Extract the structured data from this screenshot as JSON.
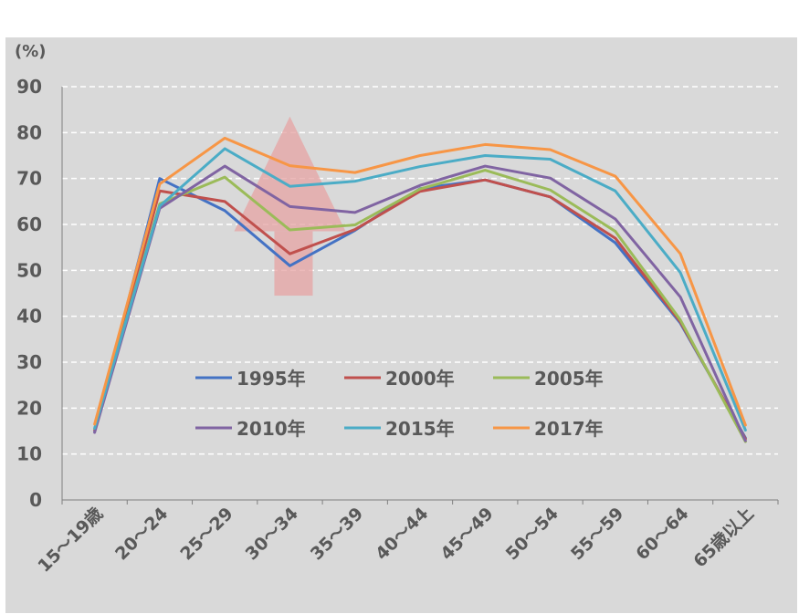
{
  "chart_data": {
    "type": "line",
    "title": "",
    "xlabel": "",
    "ylabel": "(%)",
    "ylim": [
      0,
      90
    ],
    "yticks": [
      0,
      10,
      20,
      30,
      40,
      50,
      60,
      70,
      80,
      90
    ],
    "grid": true,
    "legend_position": "center-bottom",
    "categories": [
      "15～19歳",
      "20～24",
      "25～29",
      "30～34",
      "35～39",
      "40～44",
      "45～49",
      "50～54",
      "55～59",
      "60～64",
      "65歳以上"
    ],
    "series": [
      {
        "name": "1995年",
        "color": "#4472c4",
        "values": [
          14.9,
          70.0,
          63.0,
          51.0,
          58.7,
          67.8,
          69.7,
          66.0,
          56.0,
          38.5,
          13.5
        ]
      },
      {
        "name": "2000年",
        "color": "#c0504d",
        "values": [
          15.2,
          67.3,
          65.0,
          53.6,
          58.9,
          67.2,
          69.7,
          66.0,
          57.0,
          38.8,
          13.3
        ]
      },
      {
        "name": "2005年",
        "color": "#9bbb59",
        "values": [
          15.5,
          64.5,
          70.3,
          58.8,
          59.9,
          67.7,
          71.8,
          67.5,
          58.5,
          39.2,
          12.7
        ]
      },
      {
        "name": "2010年",
        "color": "#8064a2",
        "values": [
          14.7,
          63.5,
          72.7,
          63.9,
          62.6,
          68.5,
          72.7,
          70.1,
          61.2,
          44.2,
          12.9
        ]
      },
      {
        "name": "2015年",
        "color": "#4bacc6",
        "values": [
          15.6,
          64.0,
          76.5,
          68.3,
          69.4,
          72.6,
          75.0,
          74.2,
          67.3,
          49.5,
          15.2
        ]
      },
      {
        "name": "2017年",
        "color": "#f79646",
        "values": [
          16.5,
          68.8,
          78.8,
          72.8,
          71.3,
          75.0,
          77.4,
          76.3,
          70.5,
          53.6,
          16.3
        ]
      }
    ],
    "annotation": {
      "type": "upward-arrow",
      "color": "#e6a3a3"
    }
  }
}
